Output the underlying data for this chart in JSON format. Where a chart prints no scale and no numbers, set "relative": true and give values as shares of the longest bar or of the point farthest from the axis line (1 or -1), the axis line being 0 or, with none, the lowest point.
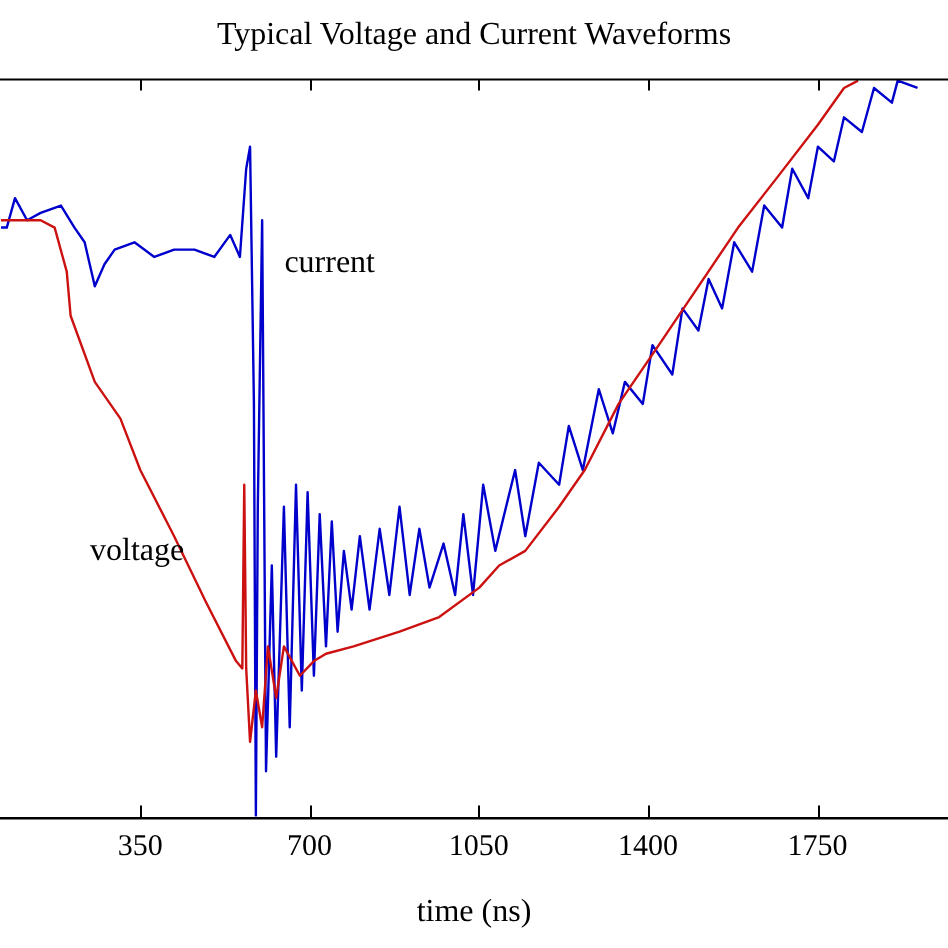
{
  "chart_data": {
    "type": "line",
    "title": "Typical Voltage and Current Waveforms",
    "xlabel": "time (ns)",
    "relative": true,
    "xlim": [
      60,
      2020
    ],
    "xticks": [
      350,
      700,
      1050,
      1400,
      1750
    ],
    "grid": false,
    "legend": false,
    "marker": "none",
    "line_style": "solid",
    "series": [
      {
        "name": "voltage",
        "color": "#cc1111",
        "x": [
          62,
          91,
          144,
          173,
          198,
          206,
          256,
          309,
          350,
          420,
          486,
          548,
          561,
          565,
          569,
          577,
          589,
          602,
          614,
          631,
          647,
          680,
          709,
          734,
          791,
          886,
          968,
          1051,
          1092,
          1146,
          1216,
          1269,
          1339,
          1422,
          1504,
          1586,
          1669,
          1751,
          1805,
          1834
        ],
        "values": [
          0.81,
          0.81,
          0.81,
          0.8,
          0.74,
          0.68,
          0.59,
          0.54,
          0.47,
          0.38,
          0.29,
          0.21,
          0.2,
          0.45,
          0.2,
          0.1,
          0.17,
          0.12,
          0.23,
          0.16,
          0.23,
          0.19,
          0.21,
          0.22,
          0.23,
          0.25,
          0.27,
          0.31,
          0.34,
          0.36,
          0.42,
          0.47,
          0.56,
          0.64,
          0.72,
          0.8,
          0.87,
          0.94,
          0.99,
          1.0
        ]
      },
      {
        "name": "current",
        "color": "#0000cc",
        "x": [
          62,
          74,
          91,
          116,
          144,
          186,
          214,
          235,
          256,
          276,
          297,
          338,
          379,
          420,
          462,
          503,
          536,
          556,
          569,
          577,
          585,
          589,
          593,
          602,
          610,
          622,
          631,
          647,
          659,
          672,
          684,
          696,
          709,
          721,
          734,
          746,
          758,
          771,
          787,
          804,
          824,
          845,
          865,
          886,
          907,
          927,
          948,
          977,
          1001,
          1018,
          1038,
          1059,
          1084,
          1125,
          1146,
          1174,
          1216,
          1236,
          1265,
          1298,
          1327,
          1352,
          1389,
          1409,
          1450,
          1471,
          1504,
          1525,
          1553,
          1578,
          1615,
          1640,
          1677,
          1698,
          1731,
          1751,
          1784,
          1805,
          1842,
          1867,
          1904,
          1916,
          1957
        ],
        "values": [
          0.8,
          0.8,
          0.84,
          0.81,
          0.82,
          0.83,
          0.8,
          0.78,
          0.72,
          0.75,
          0.77,
          0.78,
          0.76,
          0.77,
          0.77,
          0.76,
          0.79,
          0.76,
          0.88,
          0.91,
          0.56,
          0,
          0.42,
          0.81,
          0.06,
          0.34,
          0.08,
          0.42,
          0.12,
          0.45,
          0.17,
          0.44,
          0.19,
          0.41,
          0.23,
          0.4,
          0.25,
          0.36,
          0.28,
          0.38,
          0.28,
          0.39,
          0.3,
          0.42,
          0.3,
          0.39,
          0.31,
          0.37,
          0.3,
          0.41,
          0.3,
          0.45,
          0.36,
          0.47,
          0.38,
          0.48,
          0.45,
          0.53,
          0.47,
          0.58,
          0.52,
          0.59,
          0.56,
          0.64,
          0.6,
          0.69,
          0.66,
          0.73,
          0.69,
          0.78,
          0.74,
          0.83,
          0.8,
          0.88,
          0.84,
          0.91,
          0.89,
          0.95,
          0.93,
          0.99,
          0.97,
          1.0,
          0.99
        ]
      }
    ]
  }
}
